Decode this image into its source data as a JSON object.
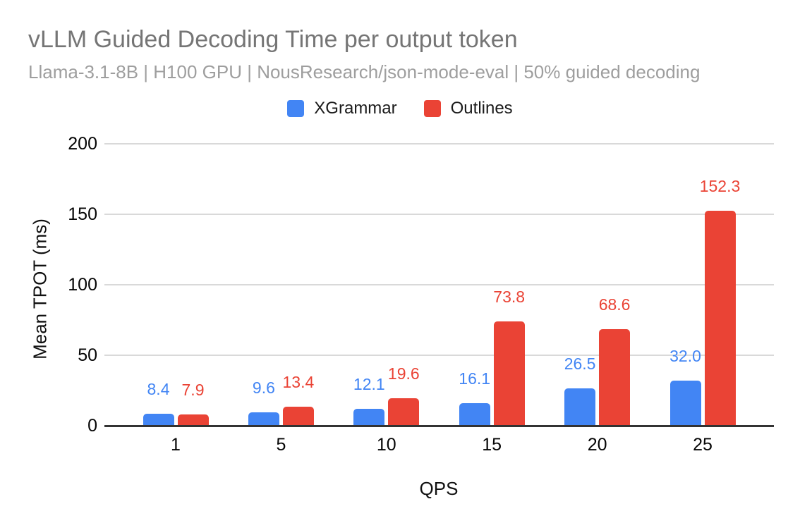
{
  "chart_data": {
    "type": "bar",
    "title": "vLLM Guided Decoding Time per output token",
    "subtitle": "Llama-3.1-8B | H100 GPU | NousResearch/json-mode-eval | 50% guided decoding",
    "xlabel": "QPS",
    "ylabel": "Mean TPOT (ms)",
    "categories": [
      "1",
      "5",
      "10",
      "15",
      "20",
      "25"
    ],
    "series": [
      {
        "name": "XGrammar",
        "color": "#4285F4",
        "values": [
          8.4,
          9.6,
          12.1,
          16.1,
          26.5,
          32.0
        ],
        "labels": [
          "8.4",
          "9.6",
          "12.1",
          "16.1",
          "26.5",
          "32.0"
        ]
      },
      {
        "name": "Outlines",
        "color": "#EA4335",
        "values": [
          7.9,
          13.4,
          19.6,
          73.8,
          68.6,
          152.3
        ],
        "labels": [
          "7.9",
          "13.4",
          "19.6",
          "73.8",
          "68.6",
          "152.3"
        ]
      }
    ],
    "ylim": [
      0,
      200
    ],
    "yticks": [
      0,
      50,
      100,
      150,
      200
    ],
    "grid": true,
    "legend_position": "top",
    "data_labels": true
  },
  "colors": {
    "title": "#757575",
    "subtitle": "#9E9E9E",
    "axis_line": "#333333",
    "gridline": "#D9D9D9",
    "tick_label": "#050505",
    "background": "#FFFFFF"
  }
}
